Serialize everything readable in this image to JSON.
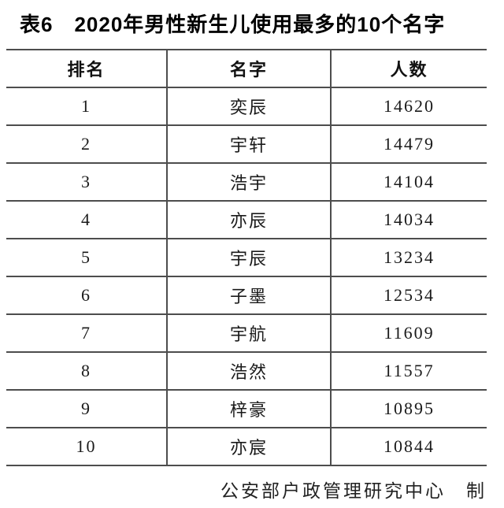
{
  "title": "表6　2020年男性新生儿使用最多的10个名字",
  "table": {
    "headers": {
      "rank": "排名",
      "name": "名字",
      "count": "人数"
    },
    "rows": [
      {
        "rank": "1",
        "name": "奕辰",
        "count": "14620"
      },
      {
        "rank": "2",
        "name": "宇轩",
        "count": "14479"
      },
      {
        "rank": "3",
        "name": "浩宇",
        "count": "14104"
      },
      {
        "rank": "4",
        "name": "亦辰",
        "count": "14034"
      },
      {
        "rank": "5",
        "name": "宇辰",
        "count": "13234"
      },
      {
        "rank": "6",
        "name": "子墨",
        "count": "12534"
      },
      {
        "rank": "7",
        "name": "宇航",
        "count": "11609"
      },
      {
        "rank": "8",
        "name": "浩然",
        "count": "11557"
      },
      {
        "rank": "9",
        "name": "梓豪",
        "count": "10895"
      },
      {
        "rank": "10",
        "name": "亦宸",
        "count": "10844"
      }
    ]
  },
  "credit": "公安部户政管理研究中心　制",
  "colors": {
    "rule": "#4d4d4d",
    "title_text": "#000000",
    "body_text": "#1a1a1a",
    "background": "#ffffff"
  }
}
